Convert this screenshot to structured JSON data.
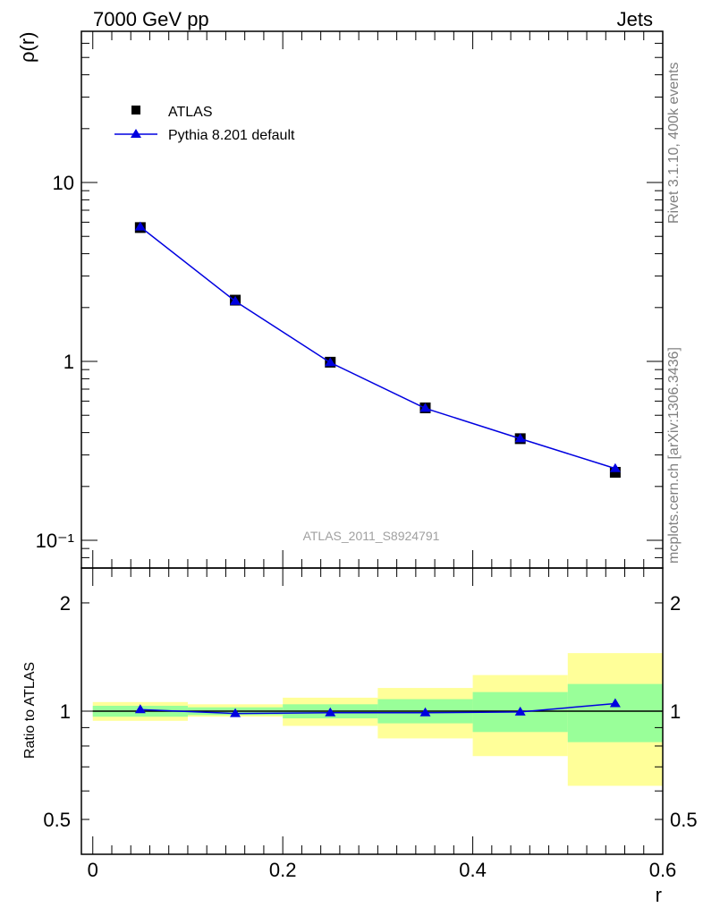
{
  "header": {
    "left": "7000 GeV pp",
    "right": "Jets"
  },
  "side": {
    "rivet": "Rivet 3.1.10,  400k events",
    "mcplots": "mcplots.cern.ch [arXiv:1306.3436]"
  },
  "colors": {
    "mc": "#0000e0",
    "data": "#000000",
    "band_inner": "#99ff99",
    "band_outer": "#ffff99",
    "annotation": "#a0a0a0"
  },
  "chart_data": [
    {
      "type": "line",
      "ylabel": "ρ(r)",
      "yscale": "log",
      "ylim": [
        0.07,
        70
      ],
      "xlim": [
        -0.012,
        0.6
      ],
      "y_tick_labels": [
        "10⁻¹",
        "1",
        "10"
      ],
      "annotation": "ATLAS_2011_S8924791",
      "legend_placement": "top-left",
      "series": [
        {
          "name": "ATLAS",
          "marker": "square",
          "x": [
            0.05,
            0.15,
            0.25,
            0.35,
            0.45,
            0.55
          ],
          "values": [
            5.6,
            2.2,
            0.99,
            0.55,
            0.37,
            0.24
          ]
        },
        {
          "name": "Pythia 8.201 default",
          "marker": "triangle",
          "x": [
            0.05,
            0.15,
            0.25,
            0.35,
            0.45,
            0.55
          ],
          "values": [
            5.65,
            2.17,
            0.985,
            0.547,
            0.37,
            0.252
          ]
        }
      ]
    },
    {
      "type": "line",
      "ylabel": "Ratio to ATLAS",
      "xlabel": "r",
      "ylim": [
        0.4,
        2.5
      ],
      "xlim": [
        -0.012,
        0.6
      ],
      "x_tick_labels": [
        "0",
        "0.2",
        "0.4",
        "0.6"
      ],
      "y_tick_labels": [
        "0.5",
        "1",
        "2"
      ],
      "bins": [
        {
          "x0": 0.0,
          "x1": 0.1,
          "inner": [
            0.965,
            1.035
          ],
          "outer": [
            0.94,
            1.06
          ]
        },
        {
          "x0": 0.1,
          "x1": 0.2,
          "inner": [
            0.975,
            1.025
          ],
          "outer": [
            0.965,
            1.045
          ]
        },
        {
          "x0": 0.2,
          "x1": 0.3,
          "inner": [
            0.955,
            1.045
          ],
          "outer": [
            0.91,
            1.09
          ]
        },
        {
          "x0": 0.3,
          "x1": 0.4,
          "inner": [
            0.925,
            1.08
          ],
          "outer": [
            0.84,
            1.16
          ]
        },
        {
          "x0": 0.4,
          "x1": 0.5,
          "inner": [
            0.875,
            1.13
          ],
          "outer": [
            0.75,
            1.26
          ]
        },
        {
          "x0": 0.5,
          "x1": 0.6,
          "inner": [
            0.82,
            1.19
          ],
          "outer": [
            0.62,
            1.45
          ]
        }
      ],
      "series": [
        {
          "name": "Pythia 8.201 default",
          "x": [
            0.05,
            0.15,
            0.25,
            0.35,
            0.45,
            0.55
          ],
          "values": [
            1.01,
            0.985,
            0.99,
            0.99,
            0.995,
            1.05
          ]
        }
      ]
    }
  ]
}
